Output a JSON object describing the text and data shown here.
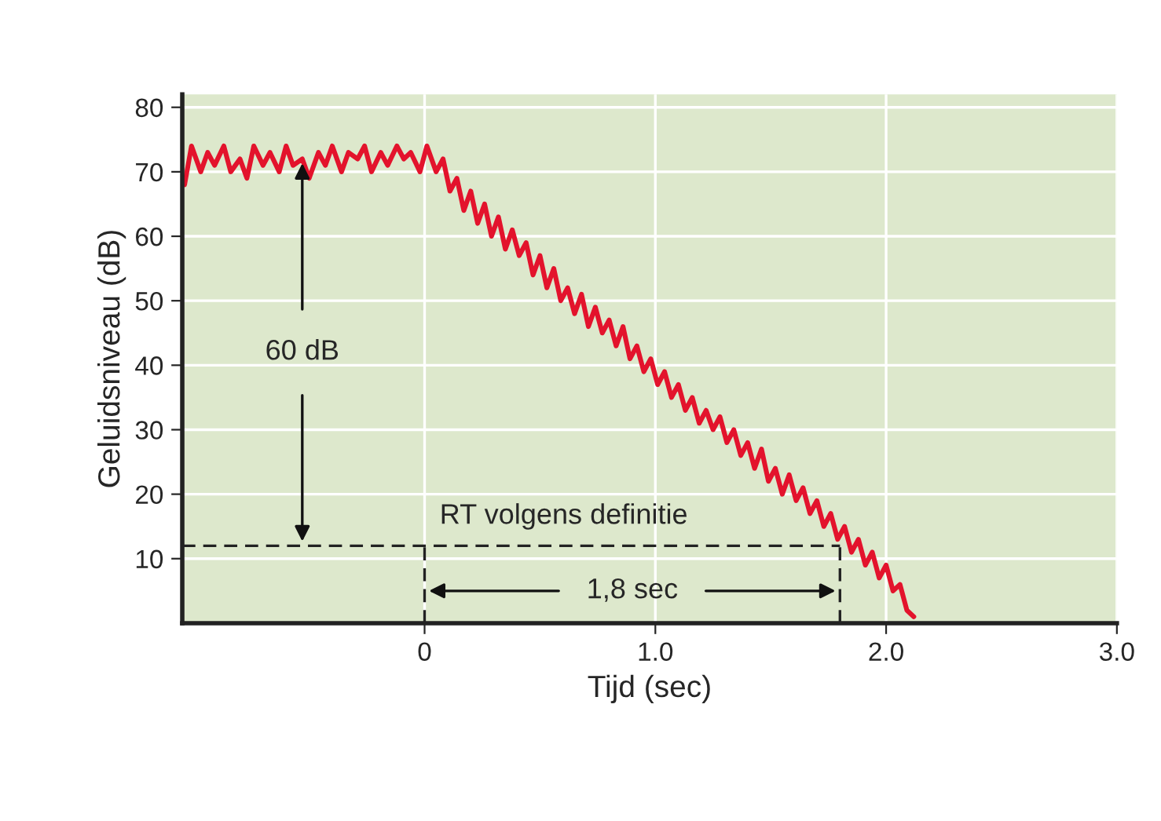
{
  "chart_data": {
    "type": "line",
    "xlabel": "Tijd (sec)",
    "ylabel": "Geluidsniveau (dB)",
    "series": [
      {
        "color": "#e3132c",
        "x": [
          -1.04,
          -1.01,
          -0.97,
          -0.94,
          -0.91,
          -0.87,
          -0.84,
          -0.8,
          -0.77,
          -0.74,
          -0.7,
          -0.67,
          -0.63,
          -0.6,
          -0.57,
          -0.53,
          -0.5,
          -0.46,
          -0.43,
          -0.4,
          -0.36,
          -0.33,
          -0.29,
          -0.26,
          -0.23,
          -0.19,
          -0.16,
          -0.12,
          -0.09,
          -0.06,
          -0.02,
          0.01,
          0.05,
          0.08,
          0.11,
          0.14,
          0.17,
          0.2,
          0.23,
          0.26,
          0.29,
          0.32,
          0.35,
          0.38,
          0.41,
          0.44,
          0.47,
          0.5,
          0.53,
          0.56,
          0.59,
          0.62,
          0.65,
          0.68,
          0.71,
          0.74,
          0.77,
          0.8,
          0.83,
          0.86,
          0.89,
          0.92,
          0.95,
          0.98,
          1.01,
          1.04,
          1.07,
          1.1,
          1.13,
          1.16,
          1.19,
          1.22,
          1.25,
          1.28,
          1.31,
          1.34,
          1.37,
          1.4,
          1.43,
          1.46,
          1.49,
          1.52,
          1.55,
          1.58,
          1.61,
          1.64,
          1.67,
          1.7,
          1.73,
          1.76,
          1.79,
          1.82,
          1.85,
          1.88,
          1.91,
          1.94,
          1.97,
          2.0,
          2.03,
          2.06,
          2.09,
          2.12
        ],
        "values": [
          68,
          74,
          70,
          73,
          71,
          74,
          70,
          72,
          69,
          74,
          71,
          73,
          70,
          74,
          71,
          72,
          69,
          73,
          71,
          74,
          70,
          73,
          72,
          74,
          70,
          73,
          71,
          74,
          72,
          73,
          70,
          74,
          70,
          72,
          67,
          69,
          64,
          67,
          62,
          65,
          60,
          63,
          58,
          61,
          57,
          59,
          54,
          57,
          52,
          55,
          50,
          52,
          48,
          51,
          46,
          49,
          45,
          47,
          43,
          46,
          41,
          43,
          39,
          41,
          37,
          39,
          35,
          37,
          33,
          35,
          31,
          33,
          30,
          32,
          28,
          30,
          26,
          28,
          24,
          27,
          22,
          24,
          20,
          23,
          19,
          21,
          17,
          19,
          15,
          17,
          13,
          15,
          11,
          13,
          9,
          11,
          7,
          9,
          5,
          6,
          2,
          1
        ]
      }
    ],
    "xlim": [
      -1.05,
      3.0
    ],
    "xticks": [
      {
        "value": 0,
        "label": "0"
      },
      {
        "value": 1,
        "label": "1.0"
      },
      {
        "value": 2,
        "label": "2.0"
      },
      {
        "value": 3,
        "label": "3.0"
      }
    ],
    "ylim": [
      0,
      82
    ],
    "yticks": [
      10,
      20,
      30,
      40,
      50,
      60,
      70,
      80
    ],
    "grid": true,
    "line_style": "solid",
    "marker": "none",
    "ref_lines": [
      {
        "axis": "y",
        "value": 12,
        "label": "RT volgens definitie",
        "line_style": "dashed",
        "color": "#222222"
      },
      {
        "axis": "x",
        "value": 0,
        "line_style": "dashed",
        "color": "#222222"
      },
      {
        "axis": "x",
        "value": 1.8,
        "line_style": "dashed",
        "color": "#222222"
      }
    ],
    "annotations": [
      {
        "text": "60 dB",
        "x": -0.53,
        "y": 72
      },
      "1,8 sec"
    ]
  }
}
